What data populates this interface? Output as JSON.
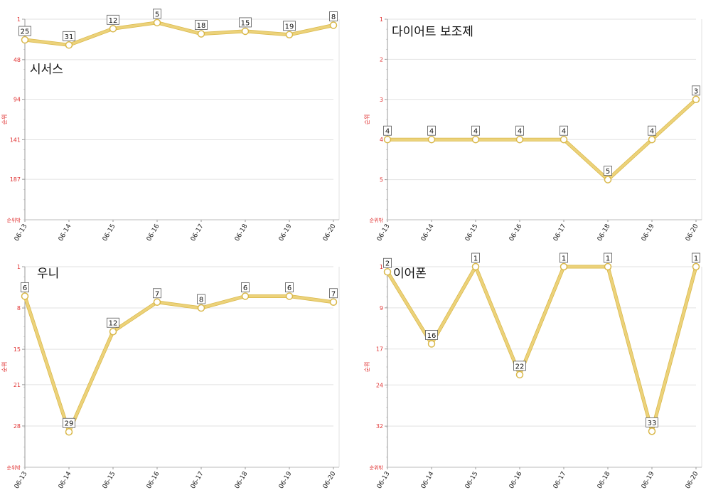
{
  "chart_data": [
    {
      "type": "line",
      "title": "시서스",
      "ylabel": "순위",
      "ymin_label": "순위밖",
      "y_ticks": [
        1,
        48,
        94,
        141,
        187
      ],
      "ylim": [
        1,
        234
      ],
      "reversed": true,
      "categories": [
        "06-13",
        "06-14",
        "06-15",
        "06-16",
        "06-17",
        "06-18",
        "06-19",
        "06-20"
      ],
      "values": [
        25,
        31,
        12,
        5,
        18,
        15,
        19,
        8
      ],
      "data_labels": [
        "25",
        "31",
        "12",
        "5",
        "18",
        "15",
        "19",
        "8"
      ],
      "grid": true
    },
    {
      "type": "line",
      "title": "다이어트 보조제",
      "ylabel": "순위",
      "ymin_label": "순위밖",
      "y_ticks": [
        1,
        2,
        3,
        4,
        5
      ],
      "ylim": [
        1,
        6
      ],
      "reversed": true,
      "categories": [
        "06-13",
        "06-14",
        "06-15",
        "06-16",
        "06-17",
        "06-18",
        "06-19",
        "06-20"
      ],
      "values": [
        4,
        4,
        4,
        4,
        4,
        5,
        4,
        3
      ],
      "data_labels": [
        "4",
        "4",
        "4",
        "4",
        "4",
        "5",
        "4",
        "3"
      ],
      "grid": true
    },
    {
      "type": "line",
      "title": "우니",
      "ylabel": "순위",
      "ymin_label": "순위밖",
      "y_ticks": [
        1,
        8,
        15,
        21,
        28
      ],
      "ylim": [
        1,
        35
      ],
      "reversed": true,
      "categories": [
        "06-13",
        "06-14",
        "06-15",
        "06-16",
        "06-17",
        "06-18",
        "06-19",
        "06-20"
      ],
      "values": [
        6,
        29,
        12,
        7,
        8,
        6,
        6,
        7
      ],
      "data_labels": [
        "6",
        "29",
        "12",
        "7",
        "8",
        "6",
        "6",
        "7"
      ],
      "grid": true
    },
    {
      "type": "line",
      "title": "이어폰",
      "ylabel": "순위",
      "ymin_label": "순위밖",
      "y_ticks": [
        1,
        9,
        17,
        24,
        32
      ],
      "ylim": [
        1,
        40
      ],
      "reversed": true,
      "categories": [
        "06-13",
        "06-14",
        "06-15",
        "06-16",
        "06-17",
        "06-18",
        "06-19",
        "06-20"
      ],
      "values": [
        2,
        16,
        1,
        22,
        1,
        1,
        33,
        1
      ],
      "data_labels": [
        "2",
        "16",
        "1",
        "22",
        "1",
        "1",
        "33",
        "1"
      ],
      "grid": true
    }
  ],
  "colors": {
    "line": "#ecd27a",
    "line_edge": "#d9b84a",
    "marker_fill": "#ffffff",
    "axis_text": "#e03030",
    "grid": "#e2e2e2",
    "title": "#111111"
  }
}
